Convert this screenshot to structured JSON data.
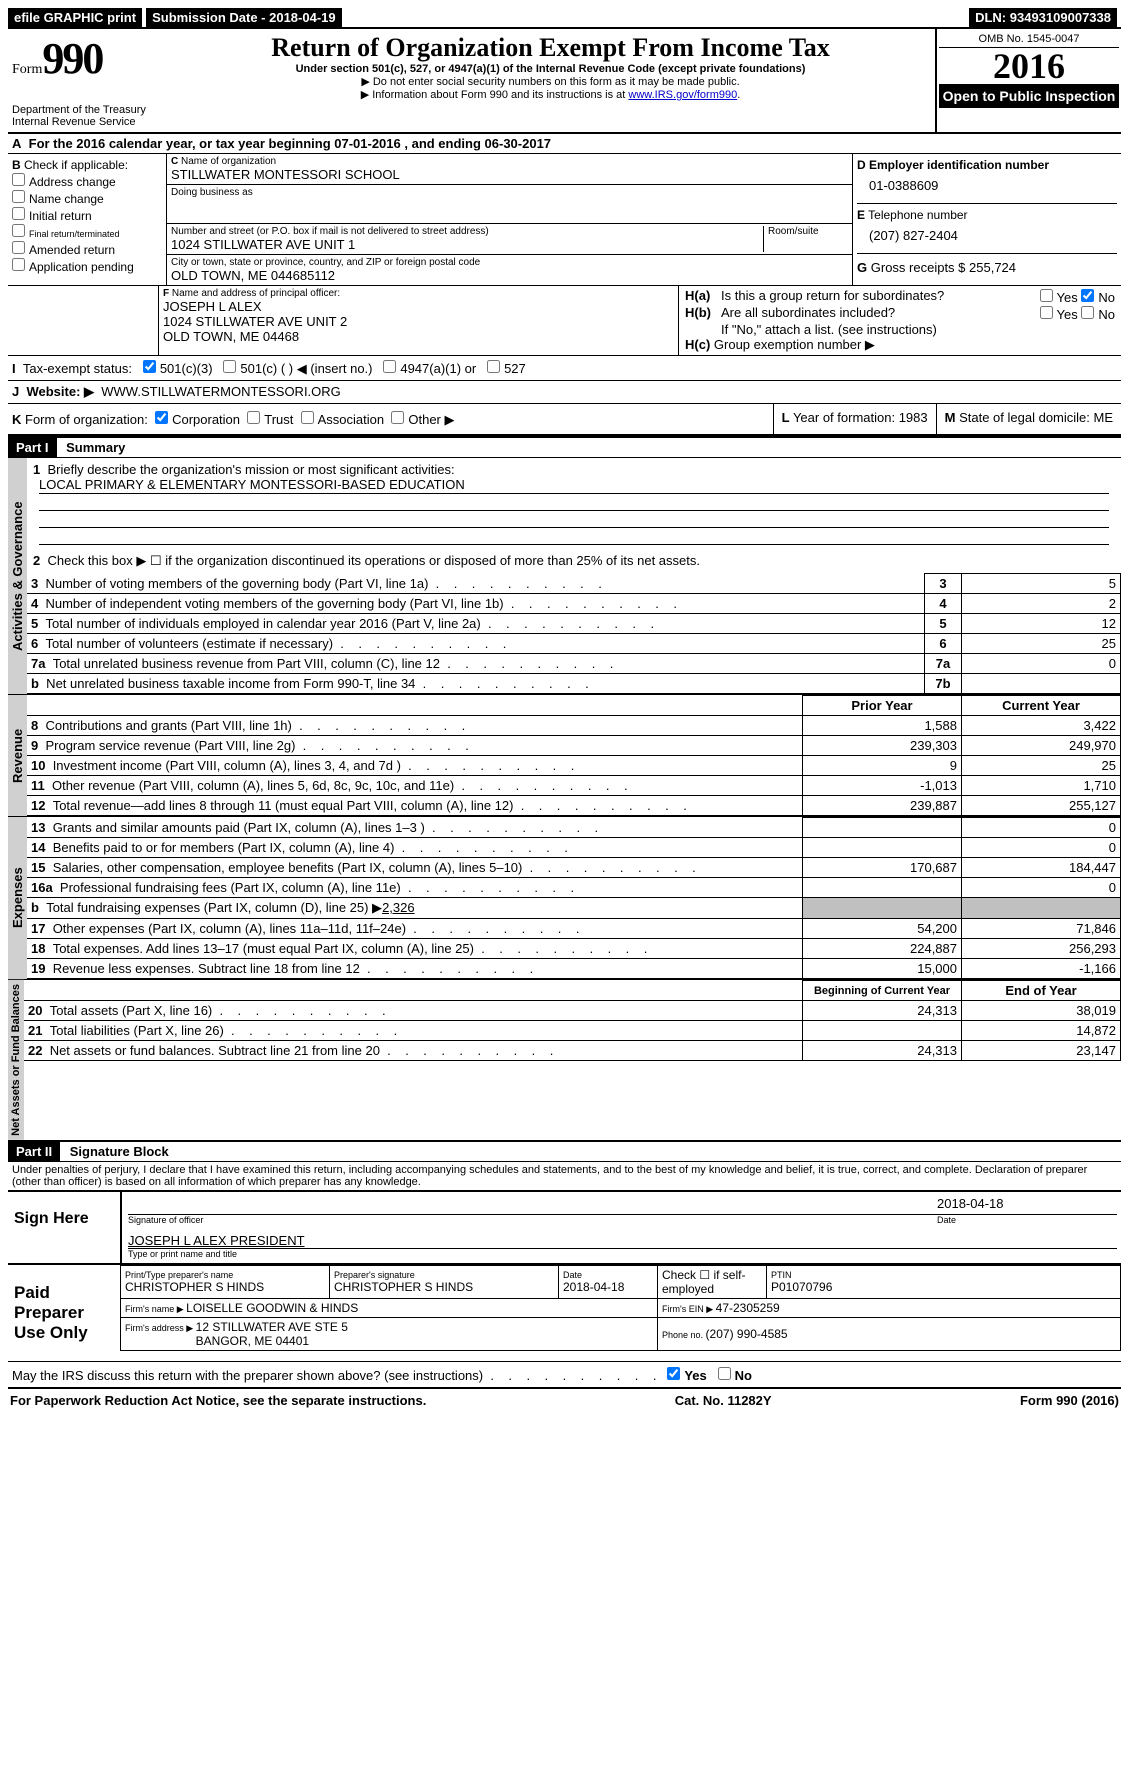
{
  "topbar": {
    "efile": "efile GRAPHIC print",
    "sub_label": "Submission Date - ",
    "sub_date": "2018-04-19",
    "dln_label": "DLN: ",
    "dln": "93493109007338"
  },
  "header": {
    "form_word": "Form",
    "form_num": "990",
    "dept1": "Department of the Treasury",
    "dept2": "Internal Revenue Service",
    "title": "Return of Organization Exempt From Income Tax",
    "sub1": "Under section 501(c), 527, or 4947(a)(1) of the Internal Revenue Code (except private foundations)",
    "sub2": "▶ Do not enter social security numbers on this form as it may be made public.",
    "sub3_pre": "▶ Information about Form 990 and its instructions is at ",
    "sub3_link": "www.IRS.gov/form990",
    "omb_label": "OMB No. ",
    "omb": "1545-0047",
    "year": "2016",
    "open": "Open to Public Inspection"
  },
  "A": {
    "text_pre": "For the 2016 calendar year, or tax year beginning ",
    "begin": "07-01-2016",
    "mid": " , and ending ",
    "end": "06-30-2017"
  },
  "B": {
    "label": "Check if applicable:",
    "items": [
      "Address change",
      "Name change",
      "Initial return",
      "Final return/terminated",
      "Amended return",
      "Application pending"
    ]
  },
  "C": {
    "name_label": "Name of organization",
    "name": "STILLWATER MONTESSORI SCHOOL",
    "dba_label": "Doing business as",
    "dba": "",
    "street_label": "Number and street (or P.O. box if mail is not delivered to street address)",
    "room_label": "Room/suite",
    "street": "1024 STILLWATER AVE UNIT 1",
    "city_label": "City or town, state or province, country, and ZIP or foreign postal code",
    "city": "OLD TOWN, ME  044685112"
  },
  "D": {
    "label": "Employer identification number",
    "value": "01-0388609"
  },
  "E": {
    "label": "Telephone number",
    "value": "(207) 827-2404"
  },
  "G": {
    "label": "Gross receipts $ ",
    "value": "255,724"
  },
  "F": {
    "label": "Name and address of principal officer:",
    "name": "JOSEPH L ALEX",
    "addr1": "1024 STILLWATER AVE UNIT 2",
    "addr2": "OLD TOWN, ME  04468"
  },
  "H": {
    "a_q": "Is this a group return for subordinates?",
    "a_yes": "Yes",
    "a_no": "No",
    "b_q": "Are all subordinates included?",
    "b_note": "If \"No,\" attach a list. (see instructions)",
    "c_q": "Group exemption number ▶"
  },
  "I": {
    "label": "Tax-exempt status:",
    "o1": "501(c)(3)",
    "o2": "501(c) (   ) ◀ (insert no.)",
    "o3": "4947(a)(1) or",
    "o4": "527"
  },
  "J": {
    "label": "Website: ▶",
    "value": "WWW.STILLWATERMONTESSORI.ORG"
  },
  "K": {
    "label": "Form of organization:",
    "o1": "Corporation",
    "o2": "Trust",
    "o3": "Association",
    "o4": "Other ▶"
  },
  "L": {
    "label": "Year of formation: ",
    "value": "1983"
  },
  "M": {
    "label": "State of legal domicile: ",
    "value": "ME"
  },
  "part1": {
    "bar": "Part I",
    "title": "Summary",
    "vlabel1": "Activities & Governance",
    "vlabel2": "Revenue",
    "vlabel3": "Expenses",
    "vlabel4": "Net Assets or Fund Balances",
    "l1_label": "Briefly describe the organization's mission or most significant activities:",
    "l1_value": "LOCAL PRIMARY & ELEMENTARY MONTESSORI-BASED EDUCATION",
    "l2": "Check this box ▶ ☐  if the organization discontinued its operations or disposed of more than 25% of its net assets.",
    "rows_ag": [
      {
        "n": "3",
        "t": "Number of voting members of the governing body (Part VI, line 1a)",
        "box": "3",
        "v": "5"
      },
      {
        "n": "4",
        "t": "Number of independent voting members of the governing body (Part VI, line 1b)",
        "box": "4",
        "v": "2"
      },
      {
        "n": "5",
        "t": "Total number of individuals employed in calendar year 2016 (Part V, line 2a)",
        "box": "5",
        "v": "12"
      },
      {
        "n": "6",
        "t": "Total number of volunteers (estimate if necessary)",
        "box": "6",
        "v": "25"
      },
      {
        "n": "7a",
        "t": "Total unrelated business revenue from Part VIII, column (C), line 12",
        "box": "7a",
        "v": "0"
      },
      {
        "n": "b",
        "t": "Net unrelated business taxable income from Form 990-T, line 34",
        "box": "7b",
        "v": ""
      }
    ],
    "header_prior": "Prior Year",
    "header_current": "Current Year",
    "rows_rev": [
      {
        "n": "8",
        "t": "Contributions and grants (Part VIII, line 1h)",
        "p": "1,588",
        "c": "3,422"
      },
      {
        "n": "9",
        "t": "Program service revenue (Part VIII, line 2g)",
        "p": "239,303",
        "c": "249,970"
      },
      {
        "n": "10",
        "t": "Investment income (Part VIII, column (A), lines 3, 4, and 7d )",
        "p": "9",
        "c": "25"
      },
      {
        "n": "11",
        "t": "Other revenue (Part VIII, column (A), lines 5, 6d, 8c, 9c, 10c, and 11e)",
        "p": "-1,013",
        "c": "1,710"
      },
      {
        "n": "12",
        "t": "Total revenue—add lines 8 through 11 (must equal Part VIII, column (A), line 12)",
        "p": "239,887",
        "c": "255,127"
      }
    ],
    "rows_exp": [
      {
        "n": "13",
        "t": "Grants and similar amounts paid (Part IX, column (A), lines 1–3 )",
        "p": "",
        "c": "0"
      },
      {
        "n": "14",
        "t": "Benefits paid to or for members (Part IX, column (A), line 4)",
        "p": "",
        "c": "0"
      },
      {
        "n": "15",
        "t": "Salaries, other compensation, employee benefits (Part IX, column (A), lines 5–10)",
        "p": "170,687",
        "c": "184,447"
      },
      {
        "n": "16a",
        "t": "Professional fundraising fees (Part IX, column (A), line 11e)",
        "p": "",
        "c": "0"
      }
    ],
    "row16b_pre": "Total fundraising expenses (Part IX, column (D), line 25) ▶",
    "row16b_val": "2,326",
    "rows_exp2": [
      {
        "n": "17",
        "t": "Other expenses (Part IX, column (A), lines 11a–11d, 11f–24e)",
        "p": "54,200",
        "c": "71,846"
      },
      {
        "n": "18",
        "t": "Total expenses. Add lines 13–17 (must equal Part IX, column (A), line 25)",
        "p": "224,887",
        "c": "256,293"
      },
      {
        "n": "19",
        "t": "Revenue less expenses. Subtract line 18 from line 12",
        "p": "15,000",
        "c": "-1,166"
      }
    ],
    "header_boy": "Beginning of Current Year",
    "header_eoy": "End of Year",
    "rows_na": [
      {
        "n": "20",
        "t": "Total assets (Part X, line 16)",
        "p": "24,313",
        "c": "38,019"
      },
      {
        "n": "21",
        "t": "Total liabilities (Part X, line 26)",
        "p": "",
        "c": "14,872"
      },
      {
        "n": "22",
        "t": "Net assets or fund balances. Subtract line 21 from line 20",
        "p": "24,313",
        "c": "23,147"
      }
    ]
  },
  "part2": {
    "bar": "Part II",
    "title": "Signature Block",
    "perjury": "Under penalties of perjury, I declare that I have examined this return, including accompanying schedules and statements, and to the best of my knowledge and belief, it is true, correct, and complete. Declaration of preparer (other than officer) is based on all information of which preparer has any knowledge.",
    "sign_here": "Sign Here",
    "sig_label": "Signature of officer",
    "sig_date": "2018-04-18",
    "date_label": "Date",
    "officer_name": "JOSEPH L ALEX PRESIDENT",
    "name_label": "Type or print name and title",
    "paid": "Paid Preparer Use Only",
    "prep_name_label": "Print/Type preparer's name",
    "prep_name": "CHRISTOPHER S HINDS",
    "prep_sig_label": "Preparer's signature",
    "prep_sig": "CHRISTOPHER S HINDS",
    "prep_date_label": "Date",
    "prep_date": "2018-04-18",
    "self_emp": "Check ☐ if self-employed",
    "ptin_label": "PTIN",
    "ptin": "P01070796",
    "firm_name_label": "Firm's name    ▶ ",
    "firm_name": "LOISELLE GOODWIN & HINDS",
    "firm_ein_label": "Firm's EIN ▶ ",
    "firm_ein": "47-2305259",
    "firm_addr_label": "Firm's address ▶ ",
    "firm_addr1": "12 STILLWATER AVE STE 5",
    "firm_addr2": "BANGOR, ME  04401",
    "phone_label": "Phone no. ",
    "phone": "(207) 990-4585",
    "discuss": "May the IRS discuss this return with the preparer shown above? (see instructions)",
    "yes": "Yes",
    "no": "No"
  },
  "footer": {
    "left": "For Paperwork Reduction Act Notice, see the separate instructions.",
    "mid": "Cat. No. 11282Y",
    "right": "Form 990 (2016)"
  }
}
